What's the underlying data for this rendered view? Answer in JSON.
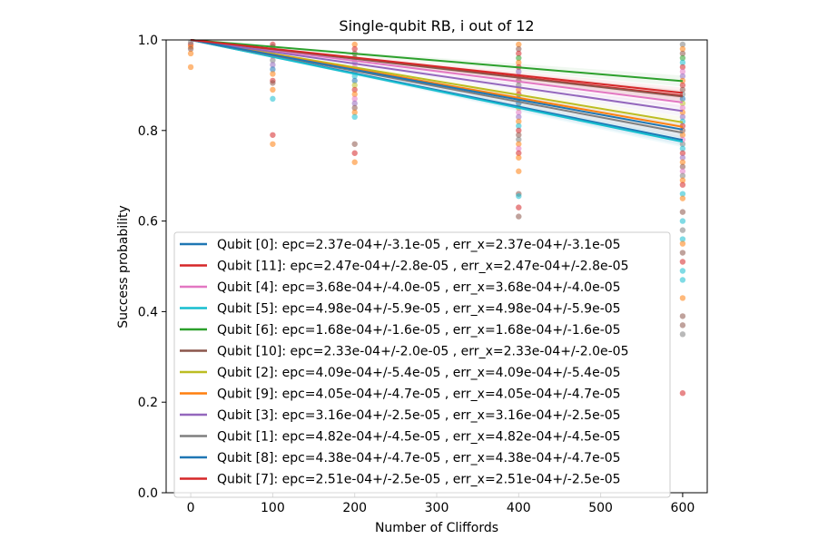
{
  "chart_data": {
    "type": "scatter",
    "title": "Single-qubit RB, i out of 12",
    "xlabel": "Number of Cliffords",
    "ylabel": "Success probability",
    "xlim": [
      -30,
      630
    ],
    "ylim": [
      0.0,
      1.0
    ],
    "xticks": [
      "0",
      "100",
      "200",
      "300",
      "400",
      "500",
      "600"
    ],
    "xtick_values": [
      0,
      100,
      200,
      300,
      400,
      500,
      600
    ],
    "yticks": [
      "0.0",
      "0.2",
      "0.4",
      "0.6",
      "0.8",
      "1.0"
    ],
    "ytick_values": [
      0.0,
      0.2,
      0.4,
      0.6,
      0.8,
      1.0
    ],
    "grid": false,
    "legend_position": "lower-center",
    "series": [
      {
        "name": "Qubit [0]: epc=2.37e-04+/-3.1e-05 , err_x=2.37e-04+/-3.1e-05",
        "color": "#1f77b4",
        "fit": [
          [
            0,
            1.0
          ],
          [
            600,
            0.779
          ]
        ]
      },
      {
        "name": "Qubit [11]: epc=2.47e-04+/-2.8e-05 , err_x=2.47e-04+/-2.8e-05",
        "color": "#d62728",
        "fit": [
          [
            0,
            1.0
          ],
          [
            600,
            0.877
          ]
        ]
      },
      {
        "name": "Qubit [4]: epc=3.68e-04+/-4.0e-05 , err_x=3.68e-04+/-4.0e-05",
        "color": "#e377c2",
        "fit": [
          [
            0,
            1.0
          ],
          [
            600,
            0.862
          ]
        ]
      },
      {
        "name": "Qubit [5]: epc=4.98e-04+/-5.9e-05 , err_x=4.98e-04+/-5.9e-05",
        "color": "#17becf",
        "fit": [
          [
            0,
            1.0
          ],
          [
            600,
            0.775
          ]
        ]
      },
      {
        "name": "Qubit [6]: epc=1.68e-04+/-1.6e-05 , err_x=1.68e-04+/-1.6e-05",
        "color": "#2ca02c",
        "fit": [
          [
            0,
            1.0
          ],
          [
            600,
            0.909
          ]
        ]
      },
      {
        "name": "Qubit [10]: epc=2.33e-04+/-2.0e-05 , err_x=2.33e-04+/-2.0e-05",
        "color": "#8c564b",
        "fit": [
          [
            0,
            1.0
          ],
          [
            600,
            0.875
          ]
        ]
      },
      {
        "name": "Qubit [2]: epc=4.09e-04+/-5.4e-05 , err_x=4.09e-04+/-5.4e-05",
        "color": "#bcbd22",
        "fit": [
          [
            0,
            1.0
          ],
          [
            600,
            0.818
          ]
        ]
      },
      {
        "name": "Qubit [9]: epc=4.05e-04+/-4.7e-05 , err_x=4.05e-04+/-4.7e-05",
        "color": "#ff7f0e",
        "fit": [
          [
            0,
            1.0
          ],
          [
            600,
            0.808
          ]
        ]
      },
      {
        "name": "Qubit [3]: epc=3.16e-04+/-2.5e-05 , err_x=3.16e-04+/-2.5e-05",
        "color": "#9467bd",
        "fit": [
          [
            0,
            1.0
          ],
          [
            600,
            0.843
          ]
        ]
      },
      {
        "name": "Qubit [1]: epc=4.82e-04+/-4.5e-05 , err_x=4.82e-04+/-4.5e-05",
        "color": "#7f7f7f",
        "fit": [
          [
            0,
            1.0
          ],
          [
            600,
            0.795
          ]
        ]
      },
      {
        "name": "Qubit [8]: epc=4.38e-04+/-4.7e-05 , err_x=4.38e-04+/-4.7e-05",
        "color": "#1f77b4",
        "fit": [
          [
            0,
            1.0
          ],
          [
            600,
            0.802
          ]
        ]
      },
      {
        "name": "Qubit [7]: epc=2.51e-04+/-2.5e-05 , err_x=2.51e-04+/-2.5e-05",
        "color": "#d62728",
        "fit": [
          [
            0,
            1.0
          ],
          [
            600,
            0.883
          ]
        ]
      }
    ],
    "scatter_points": [
      {
        "x": 0,
        "y": 0.99,
        "color": "#d62728"
      },
      {
        "x": 0,
        "y": 0.985,
        "color": "#ff7f0e"
      },
      {
        "x": 0,
        "y": 0.98,
        "color": "#8c564b"
      },
      {
        "x": 0,
        "y": 0.97,
        "color": "#ff7f0e"
      },
      {
        "x": 0,
        "y": 0.94,
        "color": "#ff7f0e"
      },
      {
        "x": 0,
        "y": 0.995,
        "color": "#7f7f7f"
      },
      {
        "x": 100,
        "y": 0.99,
        "color": "#d62728"
      },
      {
        "x": 100,
        "y": 0.985,
        "color": "#8c564b"
      },
      {
        "x": 100,
        "y": 0.975,
        "color": "#2ca02c"
      },
      {
        "x": 100,
        "y": 0.965,
        "color": "#e377c2"
      },
      {
        "x": 100,
        "y": 0.955,
        "color": "#7f7f7f"
      },
      {
        "x": 100,
        "y": 0.945,
        "color": "#9467bd"
      },
      {
        "x": 100,
        "y": 0.935,
        "color": "#1f77b4"
      },
      {
        "x": 100,
        "y": 0.925,
        "color": "#ff7f0e"
      },
      {
        "x": 100,
        "y": 0.91,
        "color": "#d62728"
      },
      {
        "x": 100,
        "y": 0.89,
        "color": "#ff7f0e"
      },
      {
        "x": 100,
        "y": 0.87,
        "color": "#17becf"
      },
      {
        "x": 100,
        "y": 0.79,
        "color": "#d62728"
      },
      {
        "x": 100,
        "y": 0.77,
        "color": "#ff7f0e"
      },
      {
        "x": 100,
        "y": 0.905,
        "color": "#8c564b"
      },
      {
        "x": 200,
        "y": 0.99,
        "color": "#ff7f0e"
      },
      {
        "x": 200,
        "y": 0.98,
        "color": "#d62728"
      },
      {
        "x": 200,
        "y": 0.97,
        "color": "#8c564b"
      },
      {
        "x": 200,
        "y": 0.96,
        "color": "#2ca02c"
      },
      {
        "x": 200,
        "y": 0.95,
        "color": "#9467bd"
      },
      {
        "x": 200,
        "y": 0.94,
        "color": "#e377c2"
      },
      {
        "x": 200,
        "y": 0.93,
        "color": "#7f7f7f"
      },
      {
        "x": 200,
        "y": 0.92,
        "color": "#17becf"
      },
      {
        "x": 200,
        "y": 0.91,
        "color": "#1f77b4"
      },
      {
        "x": 200,
        "y": 0.9,
        "color": "#bcbd22"
      },
      {
        "x": 200,
        "y": 0.89,
        "color": "#d62728"
      },
      {
        "x": 200,
        "y": 0.88,
        "color": "#ff7f0e"
      },
      {
        "x": 200,
        "y": 0.87,
        "color": "#e377c2"
      },
      {
        "x": 200,
        "y": 0.86,
        "color": "#9467bd"
      },
      {
        "x": 200,
        "y": 0.85,
        "color": "#8c564b"
      },
      {
        "x": 200,
        "y": 0.84,
        "color": "#ff7f0e"
      },
      {
        "x": 200,
        "y": 0.83,
        "color": "#17becf"
      },
      {
        "x": 200,
        "y": 0.77,
        "color": "#8c564b"
      },
      {
        "x": 200,
        "y": 0.75,
        "color": "#d62728"
      },
      {
        "x": 200,
        "y": 0.73,
        "color": "#ff7f0e"
      },
      {
        "x": 400,
        "y": 0.99,
        "color": "#ff7f0e"
      },
      {
        "x": 400,
        "y": 0.98,
        "color": "#8c564b"
      },
      {
        "x": 400,
        "y": 0.97,
        "color": "#d62728"
      },
      {
        "x": 400,
        "y": 0.96,
        "color": "#2ca02c"
      },
      {
        "x": 400,
        "y": 0.95,
        "color": "#ff7f0e"
      },
      {
        "x": 400,
        "y": 0.94,
        "color": "#d62728"
      },
      {
        "x": 400,
        "y": 0.93,
        "color": "#9467bd"
      },
      {
        "x": 400,
        "y": 0.92,
        "color": "#e377c2"
      },
      {
        "x": 400,
        "y": 0.91,
        "color": "#8c564b"
      },
      {
        "x": 400,
        "y": 0.9,
        "color": "#7f7f7f"
      },
      {
        "x": 400,
        "y": 0.89,
        "color": "#ff7f0e"
      },
      {
        "x": 400,
        "y": 0.88,
        "color": "#d62728"
      },
      {
        "x": 400,
        "y": 0.87,
        "color": "#17becf"
      },
      {
        "x": 400,
        "y": 0.86,
        "color": "#1f77b4"
      },
      {
        "x": 400,
        "y": 0.85,
        "color": "#bcbd22"
      },
      {
        "x": 400,
        "y": 0.84,
        "color": "#e377c2"
      },
      {
        "x": 400,
        "y": 0.83,
        "color": "#9467bd"
      },
      {
        "x": 400,
        "y": 0.82,
        "color": "#ff7f0e"
      },
      {
        "x": 400,
        "y": 0.81,
        "color": "#17becf"
      },
      {
        "x": 400,
        "y": 0.8,
        "color": "#d62728"
      },
      {
        "x": 400,
        "y": 0.79,
        "color": "#8c564b"
      },
      {
        "x": 400,
        "y": 0.78,
        "color": "#7f7f7f"
      },
      {
        "x": 400,
        "y": 0.77,
        "color": "#ff7f0e"
      },
      {
        "x": 400,
        "y": 0.76,
        "color": "#e377c2"
      },
      {
        "x": 400,
        "y": 0.75,
        "color": "#d62728"
      },
      {
        "x": 400,
        "y": 0.74,
        "color": "#ff7f0e"
      },
      {
        "x": 400,
        "y": 0.71,
        "color": "#ff7f0e"
      },
      {
        "x": 400,
        "y": 0.66,
        "color": "#8c564b"
      },
      {
        "x": 400,
        "y": 0.655,
        "color": "#17becf"
      },
      {
        "x": 400,
        "y": 0.63,
        "color": "#d62728"
      },
      {
        "x": 400,
        "y": 0.61,
        "color": "#8c564b"
      },
      {
        "x": 600,
        "y": 0.99,
        "color": "#7f7f7f"
      },
      {
        "x": 600,
        "y": 0.98,
        "color": "#ff7f0e"
      },
      {
        "x": 600,
        "y": 0.97,
        "color": "#8c564b"
      },
      {
        "x": 600,
        "y": 0.96,
        "color": "#2ca02c"
      },
      {
        "x": 600,
        "y": 0.95,
        "color": "#17becf"
      },
      {
        "x": 600,
        "y": 0.94,
        "color": "#d62728"
      },
      {
        "x": 600,
        "y": 0.93,
        "color": "#e377c2"
      },
      {
        "x": 600,
        "y": 0.92,
        "color": "#9467bd"
      },
      {
        "x": 600,
        "y": 0.91,
        "color": "#ff7f0e"
      },
      {
        "x": 600,
        "y": 0.9,
        "color": "#d62728"
      },
      {
        "x": 600,
        "y": 0.89,
        "color": "#8c564b"
      },
      {
        "x": 600,
        "y": 0.88,
        "color": "#7f7f7f"
      },
      {
        "x": 600,
        "y": 0.87,
        "color": "#1f77b4"
      },
      {
        "x": 600,
        "y": 0.86,
        "color": "#bcbd22"
      },
      {
        "x": 600,
        "y": 0.85,
        "color": "#e377c2"
      },
      {
        "x": 600,
        "y": 0.84,
        "color": "#ff7f0e"
      },
      {
        "x": 600,
        "y": 0.83,
        "color": "#9467bd"
      },
      {
        "x": 600,
        "y": 0.82,
        "color": "#17becf"
      },
      {
        "x": 600,
        "y": 0.81,
        "color": "#d62728"
      },
      {
        "x": 600,
        "y": 0.8,
        "color": "#8c564b"
      },
      {
        "x": 600,
        "y": 0.79,
        "color": "#ff7f0e"
      },
      {
        "x": 600,
        "y": 0.78,
        "color": "#e377c2"
      },
      {
        "x": 600,
        "y": 0.77,
        "color": "#7f7f7f"
      },
      {
        "x": 600,
        "y": 0.76,
        "color": "#17becf"
      },
      {
        "x": 600,
        "y": 0.75,
        "color": "#d62728"
      },
      {
        "x": 600,
        "y": 0.74,
        "color": "#9467bd"
      },
      {
        "x": 600,
        "y": 0.73,
        "color": "#ff7f0e"
      },
      {
        "x": 600,
        "y": 0.72,
        "color": "#8c564b"
      },
      {
        "x": 600,
        "y": 0.71,
        "color": "#e377c2"
      },
      {
        "x": 600,
        "y": 0.7,
        "color": "#7f7f7f"
      },
      {
        "x": 600,
        "y": 0.69,
        "color": "#ff7f0e"
      },
      {
        "x": 600,
        "y": 0.68,
        "color": "#d62728"
      },
      {
        "x": 600,
        "y": 0.66,
        "color": "#17becf"
      },
      {
        "x": 600,
        "y": 0.65,
        "color": "#ff7f0e"
      },
      {
        "x": 600,
        "y": 0.62,
        "color": "#8c564b"
      },
      {
        "x": 600,
        "y": 0.6,
        "color": "#17becf"
      },
      {
        "x": 600,
        "y": 0.58,
        "color": "#7f7f7f"
      },
      {
        "x": 600,
        "y": 0.56,
        "color": "#17becf"
      },
      {
        "x": 600,
        "y": 0.55,
        "color": "#ff7f0e"
      },
      {
        "x": 600,
        "y": 0.53,
        "color": "#8c564b"
      },
      {
        "x": 600,
        "y": 0.51,
        "color": "#d62728"
      },
      {
        "x": 600,
        "y": 0.49,
        "color": "#17becf"
      },
      {
        "x": 600,
        "y": 0.47,
        "color": "#17becf"
      },
      {
        "x": 600,
        "y": 0.43,
        "color": "#ff7f0e"
      },
      {
        "x": 600,
        "y": 0.39,
        "color": "#8c564b"
      },
      {
        "x": 600,
        "y": 0.37,
        "color": "#8c564b"
      },
      {
        "x": 600,
        "y": 0.35,
        "color": "#7f7f7f"
      },
      {
        "x": 600,
        "y": 0.22,
        "color": "#d62728"
      }
    ]
  }
}
